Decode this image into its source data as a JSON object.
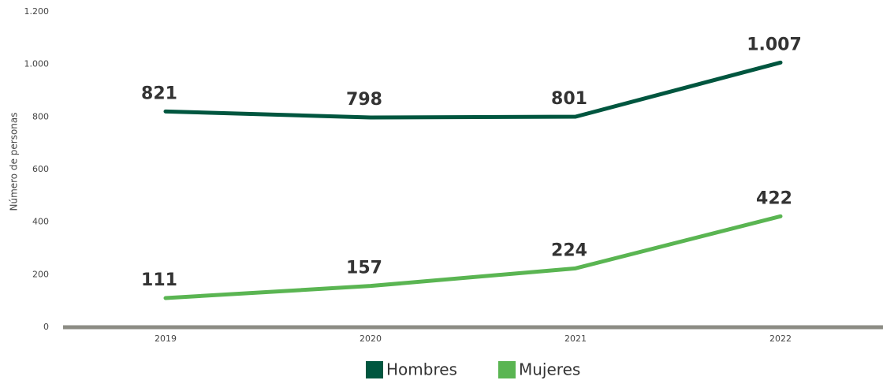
{
  "chart_data": {
    "type": "line",
    "y_label": "Número de personas",
    "categories": [
      "2019",
      "2020",
      "2021",
      "2022"
    ],
    "series": [
      {
        "name": "Hombres",
        "color": "#00563f",
        "values": [
          821,
          798,
          801,
          1007
        ],
        "value_labels": [
          "821",
          "798",
          "801",
          "1.007"
        ]
      },
      {
        "name": "Mujeres",
        "color": "#5ab552",
        "values": [
          111,
          157,
          224,
          422
        ]
      }
    ],
    "ylim": [
      0,
      1200
    ],
    "yticks": [
      0,
      200,
      400,
      600,
      800,
      {
        "value": 1000,
        "label": "1.000"
      },
      {
        "value": 1200,
        "label": "1.200"
      }
    ],
    "axis_color": "#8c8c84"
  }
}
